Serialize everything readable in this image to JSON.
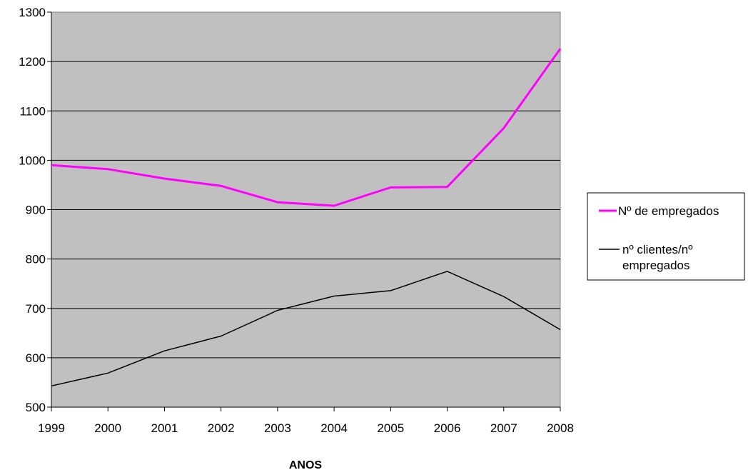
{
  "chart_data": {
    "type": "line",
    "title": "",
    "xlabel": "ANOS",
    "ylabel": "",
    "x": [
      "1999",
      "2000",
      "2001",
      "2002",
      "2003",
      "2004",
      "2005",
      "2006",
      "2007",
      "2008"
    ],
    "ylim": [
      500,
      1300
    ],
    "yticks": [
      500,
      600,
      700,
      800,
      900,
      1000,
      1100,
      1200,
      1300
    ],
    "grid": true,
    "legend_position": "right",
    "plot_background": "#C0C0C0",
    "series": [
      {
        "name": "Nº de empregados",
        "color": "#FF00FF",
        "values": [
          990,
          982,
          963,
          948,
          915,
          908,
          945,
          946,
          1065,
          1226
        ]
      },
      {
        "name": "nº clientes/nº empregados",
        "color": "#000000",
        "values": [
          543,
          569,
          614,
          644,
          696,
          725,
          736,
          775,
          724,
          657
        ]
      }
    ]
  }
}
